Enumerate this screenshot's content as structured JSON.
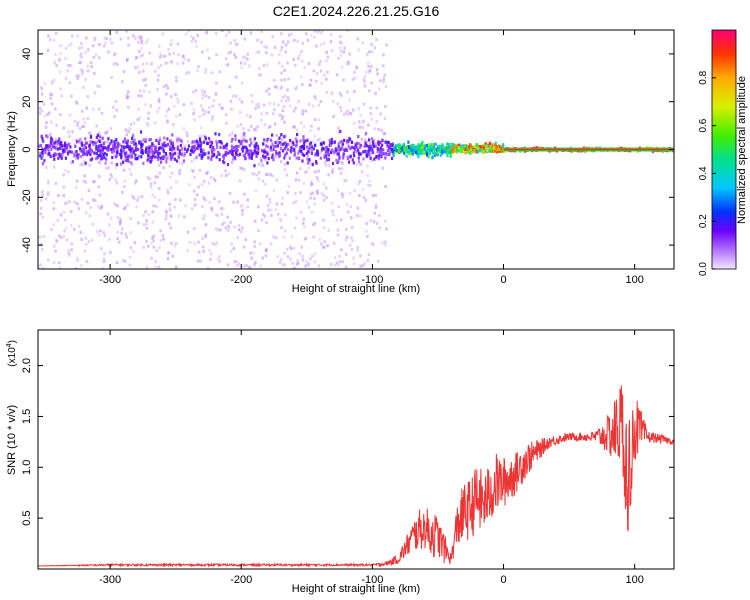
{
  "title": "C2E1.2024.226.21.25.G16",
  "chart_data": [
    {
      "type": "heatmap",
      "xlabel": "Height of straight line (km)",
      "ylabel": "Frequency (Hz)",
      "xlim": [
        -355,
        130
      ],
      "ylim": [
        -50,
        50
      ],
      "x_ticks": [
        -300,
        -200,
        -100,
        0,
        100
      ],
      "x_tick_labels": [
        "-300",
        "-200",
        "-100",
        "0",
        "100"
      ],
      "y_ticks": [
        -40,
        -20,
        0,
        20,
        40
      ],
      "y_tick_labels": [
        "-40",
        "-20",
        "0",
        "20",
        "40"
      ],
      "colorbar": {
        "label": "Normalized spectral amplitude",
        "range": [
          0,
          1
        ],
        "ticks": [
          0.0,
          0.2,
          0.4,
          0.6,
          0.8
        ],
        "tick_labels": [
          "0.0",
          "0.2",
          "0.4",
          "0.6",
          "0.8"
        ]
      },
      "regions": [
        {
          "x": [
            -355,
            -90
          ],
          "freq_spread": [
            -50,
            50
          ],
          "amplitude": 0.05
        },
        {
          "x": [
            -355,
            -85
          ],
          "freq_spread": [
            -8,
            8
          ],
          "amplitude": 0.15
        },
        {
          "x": [
            -85,
            -40
          ],
          "freq_spread": [
            -4,
            4
          ],
          "amplitude": 0.45
        },
        {
          "x": [
            -40,
            0
          ],
          "freq_spread": [
            -2,
            3
          ],
          "amplitude": 0.7
        },
        {
          "x": [
            0,
            130
          ],
          "freq_spread": [
            -1,
            1
          ],
          "amplitude": 0.9
        }
      ]
    },
    {
      "type": "line",
      "xlabel": "Height of straight line (km)",
      "ylabel": "SNR (10 * v/v)",
      "y_scale_label": "(x10",
      "y_scale_exp": "4",
      "y_scale_close": ")",
      "xlim": [
        -355,
        130
      ],
      "ylim": [
        0,
        2.35
      ],
      "x_ticks": [
        -300,
        -200,
        -100,
        0,
        100
      ],
      "x_tick_labels": [
        "-300",
        "-200",
        "-100",
        "0",
        "100"
      ],
      "y_ticks": [
        0.5,
        1.0,
        1.5,
        2.0
      ],
      "y_tick_labels": [
        "0.5",
        "1.0",
        "1.5",
        "2.0"
      ],
      "series": [
        {
          "color": "#ee3333",
          "x": [
            -355,
            -300,
            -250,
            -200,
            -150,
            -110,
            -100,
            -90,
            -80,
            -75,
            -70,
            -65,
            -60,
            -55,
            -50,
            -45,
            -40,
            -35,
            -30,
            -25,
            -20,
            -15,
            -10,
            -5,
            0,
            5,
            10,
            15,
            20,
            25,
            30,
            35,
            40,
            50,
            60,
            70,
            80,
            85,
            90,
            95,
            100,
            110,
            120,
            130
          ],
          "y": [
            0.03,
            0.04,
            0.04,
            0.04,
            0.04,
            0.04,
            0.04,
            0.05,
            0.1,
            0.2,
            0.3,
            0.38,
            0.4,
            0.35,
            0.32,
            0.2,
            0.1,
            0.45,
            0.55,
            0.6,
            0.7,
            0.65,
            0.75,
            0.85,
            0.85,
            0.9,
            0.95,
            1.05,
            1.1,
            1.15,
            1.2,
            1.25,
            1.27,
            1.3,
            1.3,
            1.3,
            1.32,
            1.35,
            1.45,
            0.9,
            1.4,
            1.3,
            1.28,
            1.25
          ],
          "noise": [
            0,
            0.01,
            0.01,
            0.01,
            0.01,
            0.01,
            0.01,
            0.02,
            0.05,
            0.1,
            0.15,
            0.2,
            0.2,
            0.25,
            0.2,
            0.15,
            0.05,
            0.25,
            0.3,
            0.3,
            0.35,
            0.3,
            0.3,
            0.3,
            0.25,
            0.25,
            0.2,
            0.2,
            0.15,
            0.12,
            0.08,
            0.06,
            0.05,
            0.04,
            0.04,
            0.06,
            0.2,
            0.35,
            0.45,
            0.6,
            0.35,
            0.06,
            0.04,
            0.03
          ]
        }
      ]
    }
  ]
}
